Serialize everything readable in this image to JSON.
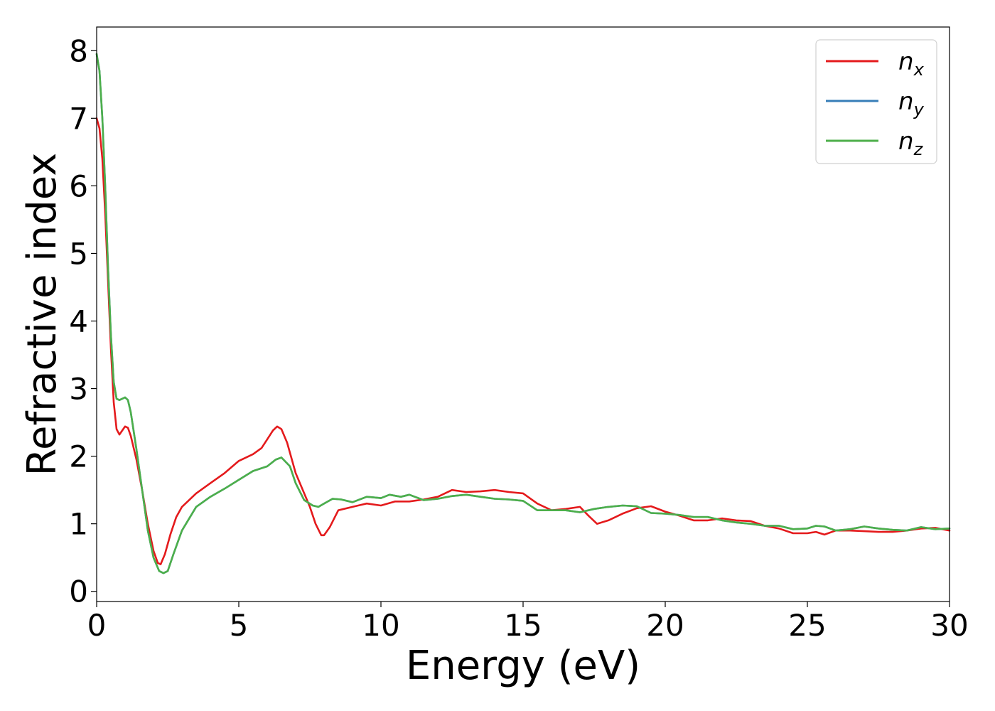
{
  "chart_data": {
    "type": "line",
    "xlabel": "Energy (eV)",
    "ylabel": "Refractive index",
    "xlim": [
      0,
      30
    ],
    "ylim": [
      -0.15,
      8.35
    ],
    "x_ticks": [
      "0",
      "5",
      "10",
      "15",
      "20",
      "25",
      "30"
    ],
    "y_ticks": [
      "0",
      "1",
      "2",
      "3",
      "4",
      "5",
      "6",
      "7",
      "8"
    ],
    "grid": false,
    "legend_position": "top-right",
    "series": [
      {
        "name": "n_x",
        "label_main": "n",
        "label_sub": "x",
        "color": "#e41a1c",
        "points": [
          [
            0,
            7.0
          ],
          [
            0.1,
            6.85
          ],
          [
            0.2,
            6.4
          ],
          [
            0.3,
            5.6
          ],
          [
            0.4,
            4.6
          ],
          [
            0.5,
            3.6
          ],
          [
            0.6,
            2.8
          ],
          [
            0.7,
            2.4
          ],
          [
            0.8,
            2.32
          ],
          [
            0.9,
            2.38
          ],
          [
            1.0,
            2.44
          ],
          [
            1.1,
            2.42
          ],
          [
            1.2,
            2.3
          ],
          [
            1.4,
            1.95
          ],
          [
            1.6,
            1.5
          ],
          [
            1.8,
            1.0
          ],
          [
            2.0,
            0.6
          ],
          [
            2.15,
            0.42
          ],
          [
            2.25,
            0.4
          ],
          [
            2.4,
            0.55
          ],
          [
            2.6,
            0.85
          ],
          [
            2.8,
            1.1
          ],
          [
            3.0,
            1.25
          ],
          [
            3.5,
            1.45
          ],
          [
            4.0,
            1.6
          ],
          [
            4.5,
            1.75
          ],
          [
            5.0,
            1.93
          ],
          [
            5.5,
            2.03
          ],
          [
            5.8,
            2.12
          ],
          [
            6.0,
            2.25
          ],
          [
            6.2,
            2.38
          ],
          [
            6.35,
            2.44
          ],
          [
            6.5,
            2.4
          ],
          [
            6.7,
            2.2
          ],
          [
            7.0,
            1.75
          ],
          [
            7.3,
            1.45
          ],
          [
            7.5,
            1.25
          ],
          [
            7.7,
            1.0
          ],
          [
            7.9,
            0.83
          ],
          [
            8.0,
            0.83
          ],
          [
            8.2,
            0.95
          ],
          [
            8.5,
            1.2
          ],
          [
            9.0,
            1.25
          ],
          [
            9.5,
            1.3
          ],
          [
            10.0,
            1.27
          ],
          [
            10.5,
            1.33
          ],
          [
            11.0,
            1.33
          ],
          [
            11.5,
            1.36
          ],
          [
            12.0,
            1.4
          ],
          [
            12.5,
            1.5
          ],
          [
            13.0,
            1.47
          ],
          [
            13.5,
            1.48
          ],
          [
            14.0,
            1.5
          ],
          [
            14.5,
            1.47
          ],
          [
            15.0,
            1.45
          ],
          [
            15.5,
            1.3
          ],
          [
            16.0,
            1.2
          ],
          [
            16.5,
            1.22
          ],
          [
            17.0,
            1.25
          ],
          [
            17.3,
            1.12
          ],
          [
            17.6,
            1.0
          ],
          [
            18.0,
            1.05
          ],
          [
            18.5,
            1.15
          ],
          [
            19.0,
            1.23
          ],
          [
            19.5,
            1.26
          ],
          [
            20.0,
            1.18
          ],
          [
            20.5,
            1.12
          ],
          [
            21.0,
            1.05
          ],
          [
            21.5,
            1.05
          ],
          [
            22.0,
            1.08
          ],
          [
            22.5,
            1.05
          ],
          [
            23.0,
            1.04
          ],
          [
            23.5,
            0.97
          ],
          [
            24.0,
            0.93
          ],
          [
            24.5,
            0.86
          ],
          [
            25.0,
            0.86
          ],
          [
            25.3,
            0.88
          ],
          [
            25.6,
            0.84
          ],
          [
            26.0,
            0.9
          ],
          [
            26.5,
            0.9
          ],
          [
            27.0,
            0.89
          ],
          [
            27.5,
            0.88
          ],
          [
            28.0,
            0.88
          ],
          [
            28.5,
            0.9
          ],
          [
            29.0,
            0.93
          ],
          [
            29.5,
            0.94
          ],
          [
            30.0,
            0.9
          ]
        ]
      },
      {
        "name": "n_y",
        "label_main": "n",
        "label_sub": "y",
        "color": "#377eb8",
        "points": [
          [
            0,
            7.95
          ],
          [
            0.1,
            7.7
          ],
          [
            0.2,
            7.0
          ],
          [
            0.3,
            6.0
          ],
          [
            0.4,
            4.8
          ],
          [
            0.5,
            3.8
          ],
          [
            0.6,
            3.1
          ],
          [
            0.7,
            2.85
          ],
          [
            0.8,
            2.83
          ],
          [
            0.9,
            2.85
          ],
          [
            1.0,
            2.87
          ],
          [
            1.1,
            2.83
          ],
          [
            1.2,
            2.65
          ],
          [
            1.4,
            2.1
          ],
          [
            1.6,
            1.5
          ],
          [
            1.8,
            0.9
          ],
          [
            2.0,
            0.5
          ],
          [
            2.2,
            0.3
          ],
          [
            2.35,
            0.27
          ],
          [
            2.5,
            0.3
          ],
          [
            2.7,
            0.55
          ],
          [
            3.0,
            0.9
          ],
          [
            3.5,
            1.25
          ],
          [
            4.0,
            1.4
          ],
          [
            4.5,
            1.52
          ],
          [
            5.0,
            1.65
          ],
          [
            5.5,
            1.78
          ],
          [
            6.0,
            1.85
          ],
          [
            6.3,
            1.95
          ],
          [
            6.5,
            1.98
          ],
          [
            6.8,
            1.85
          ],
          [
            7.0,
            1.6
          ],
          [
            7.3,
            1.35
          ],
          [
            7.6,
            1.27
          ],
          [
            7.8,
            1.25
          ],
          [
            8.0,
            1.3
          ],
          [
            8.3,
            1.37
          ],
          [
            8.6,
            1.36
          ],
          [
            9.0,
            1.32
          ],
          [
            9.5,
            1.4
          ],
          [
            10.0,
            1.38
          ],
          [
            10.3,
            1.43
          ],
          [
            10.7,
            1.4
          ],
          [
            11.0,
            1.43
          ],
          [
            11.5,
            1.35
          ],
          [
            12.0,
            1.37
          ],
          [
            12.5,
            1.41
          ],
          [
            13.0,
            1.43
          ],
          [
            13.5,
            1.4
          ],
          [
            14.0,
            1.37
          ],
          [
            14.5,
            1.36
          ],
          [
            15.0,
            1.34
          ],
          [
            15.5,
            1.2
          ],
          [
            16.0,
            1.2
          ],
          [
            16.5,
            1.2
          ],
          [
            17.0,
            1.17
          ],
          [
            17.5,
            1.22
          ],
          [
            18.0,
            1.25
          ],
          [
            18.5,
            1.27
          ],
          [
            19.0,
            1.26
          ],
          [
            19.5,
            1.16
          ],
          [
            20.0,
            1.15
          ],
          [
            20.5,
            1.13
          ],
          [
            21.0,
            1.1
          ],
          [
            21.5,
            1.1
          ],
          [
            22.0,
            1.05
          ],
          [
            22.5,
            1.02
          ],
          [
            23.0,
            1.0
          ],
          [
            23.5,
            0.97
          ],
          [
            24.0,
            0.97
          ],
          [
            24.5,
            0.92
          ],
          [
            25.0,
            0.93
          ],
          [
            25.3,
            0.97
          ],
          [
            25.6,
            0.96
          ],
          [
            26.0,
            0.9
          ],
          [
            26.5,
            0.92
          ],
          [
            27.0,
            0.96
          ],
          [
            27.5,
            0.93
          ],
          [
            28.0,
            0.91
          ],
          [
            28.5,
            0.9
          ],
          [
            29.0,
            0.95
          ],
          [
            29.5,
            0.92
          ],
          [
            30.0,
            0.93
          ]
        ]
      },
      {
        "name": "n_z",
        "label_main": "n",
        "label_sub": "z",
        "color": "#4daf4a",
        "points": [
          [
            0,
            7.95
          ],
          [
            0.1,
            7.7
          ],
          [
            0.2,
            7.0
          ],
          [
            0.3,
            6.0
          ],
          [
            0.4,
            4.8
          ],
          [
            0.5,
            3.8
          ],
          [
            0.6,
            3.1
          ],
          [
            0.7,
            2.85
          ],
          [
            0.8,
            2.83
          ],
          [
            0.9,
            2.85
          ],
          [
            1.0,
            2.87
          ],
          [
            1.1,
            2.83
          ],
          [
            1.2,
            2.65
          ],
          [
            1.4,
            2.1
          ],
          [
            1.6,
            1.5
          ],
          [
            1.8,
            0.9
          ],
          [
            2.0,
            0.5
          ],
          [
            2.2,
            0.3
          ],
          [
            2.35,
            0.27
          ],
          [
            2.5,
            0.3
          ],
          [
            2.7,
            0.55
          ],
          [
            3.0,
            0.9
          ],
          [
            3.5,
            1.25
          ],
          [
            4.0,
            1.4
          ],
          [
            4.5,
            1.52
          ],
          [
            5.0,
            1.65
          ],
          [
            5.5,
            1.78
          ],
          [
            6.0,
            1.85
          ],
          [
            6.3,
            1.95
          ],
          [
            6.5,
            1.98
          ],
          [
            6.8,
            1.85
          ],
          [
            7.0,
            1.6
          ],
          [
            7.3,
            1.35
          ],
          [
            7.6,
            1.27
          ],
          [
            7.8,
            1.25
          ],
          [
            8.0,
            1.3
          ],
          [
            8.3,
            1.37
          ],
          [
            8.6,
            1.36
          ],
          [
            9.0,
            1.32
          ],
          [
            9.5,
            1.4
          ],
          [
            10.0,
            1.38
          ],
          [
            10.3,
            1.43
          ],
          [
            10.7,
            1.4
          ],
          [
            11.0,
            1.43
          ],
          [
            11.5,
            1.35
          ],
          [
            12.0,
            1.37
          ],
          [
            12.5,
            1.41
          ],
          [
            13.0,
            1.43
          ],
          [
            13.5,
            1.4
          ],
          [
            14.0,
            1.37
          ],
          [
            14.5,
            1.36
          ],
          [
            15.0,
            1.34
          ],
          [
            15.5,
            1.2
          ],
          [
            16.0,
            1.2
          ],
          [
            16.5,
            1.2
          ],
          [
            17.0,
            1.17
          ],
          [
            17.5,
            1.22
          ],
          [
            18.0,
            1.25
          ],
          [
            18.5,
            1.27
          ],
          [
            19.0,
            1.26
          ],
          [
            19.5,
            1.16
          ],
          [
            20.0,
            1.15
          ],
          [
            20.5,
            1.13
          ],
          [
            21.0,
            1.1
          ],
          [
            21.5,
            1.1
          ],
          [
            22.0,
            1.05
          ],
          [
            22.5,
            1.02
          ],
          [
            23.0,
            1.0
          ],
          [
            23.5,
            0.97
          ],
          [
            24.0,
            0.97
          ],
          [
            24.5,
            0.92
          ],
          [
            25.0,
            0.93
          ],
          [
            25.3,
            0.97
          ],
          [
            25.6,
            0.96
          ],
          [
            26.0,
            0.9
          ],
          [
            26.5,
            0.92
          ],
          [
            27.0,
            0.96
          ],
          [
            27.5,
            0.93
          ],
          [
            28.0,
            0.91
          ],
          [
            28.5,
            0.9
          ],
          [
            29.0,
            0.95
          ],
          [
            29.5,
            0.92
          ],
          [
            30.0,
            0.93
          ]
        ]
      }
    ]
  }
}
